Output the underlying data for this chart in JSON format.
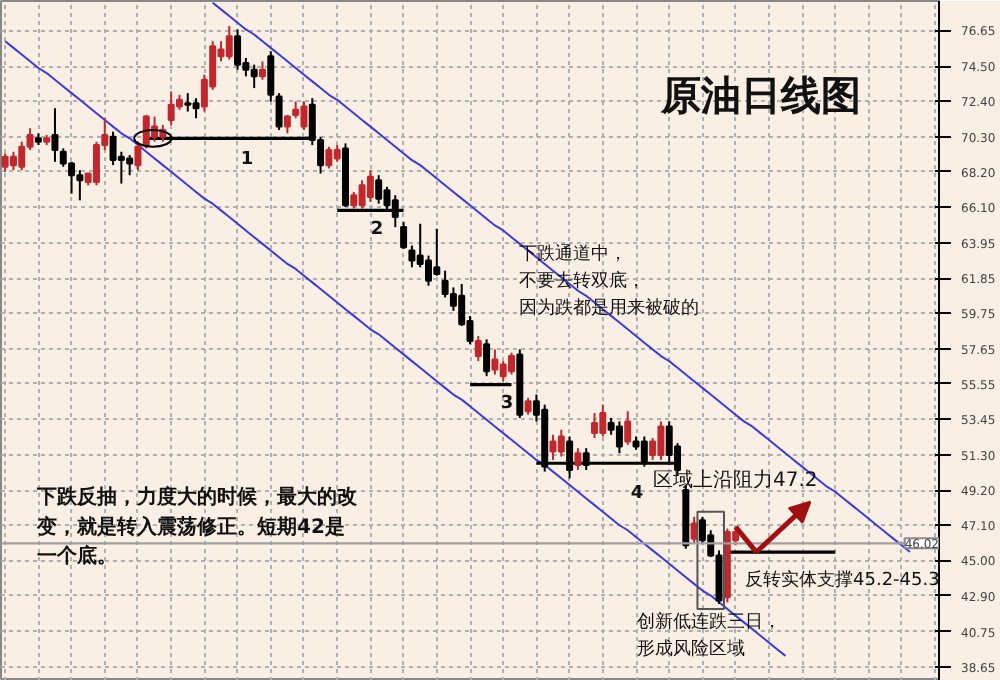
{
  "chart_data": {
    "type": "candlestick",
    "title": "原油日线图",
    "categories": [
      null,
      null,
      null,
      null,
      null,
      null,
      null,
      null,
      null,
      null,
      null,
      null,
      null,
      null,
      null,
      null,
      null,
      null,
      null,
      null,
      null,
      null,
      null,
      null,
      null,
      null,
      null,
      null,
      null,
      null,
      null,
      null,
      null,
      null,
      null,
      null,
      null,
      null,
      null,
      null,
      null,
      null,
      null,
      null,
      null,
      null,
      null,
      null,
      null,
      null,
      null,
      null,
      null,
      null,
      null,
      null,
      null,
      null,
      null,
      null,
      null,
      null,
      null,
      null,
      null,
      null,
      null,
      null,
      null,
      null,
      null,
      null,
      null,
      null,
      null,
      null,
      null,
      null,
      null,
      null,
      null,
      null,
      null,
      null,
      null,
      null,
      null,
      null,
      null,
      null,
      null,
      null,
      null,
      null,
      null,
      null,
      null,
      null,
      null,
      null,
      null,
      null,
      null,
      null,
      null,
      null,
      null,
      null,
      null,
      null,
      null,
      null,
      null
    ],
    "ohlc": [
      [
        68.5,
        69.3,
        68.2,
        69.1
      ],
      [
        68.6,
        69.4,
        68.3,
        69.1
      ],
      [
        68.5,
        70.0,
        68.3,
        69.7
      ],
      [
        69.7,
        70.8,
        69.5,
        70.4
      ],
      [
        70.2,
        70.5,
        69.8,
        70.0
      ],
      [
        70.0,
        70.4,
        69.8,
        70.2
      ],
      [
        70.4,
        72.0,
        68.8,
        69.5
      ],
      [
        69.4,
        69.6,
        68.5,
        68.7
      ],
      [
        68.7,
        68.8,
        66.9,
        68.0
      ],
      [
        68.0,
        68.3,
        66.5,
        67.7
      ],
      [
        67.6,
        68.1,
        67.4,
        68.1
      ],
      [
        67.6,
        70.0,
        67.4,
        69.8
      ],
      [
        69.8,
        71.4,
        69.5,
        70.4
      ],
      [
        70.3,
        70.6,
        68.6,
        68.9
      ],
      [
        69.1,
        69.4,
        67.5,
        68.9
      ],
      [
        69.0,
        69.2,
        68.0,
        68.7
      ],
      [
        68.6,
        70.0,
        68.3,
        69.7
      ],
      [
        69.8,
        71.6,
        69.6,
        71.5
      ],
      [
        70.3,
        71.5,
        70.0,
        70.9
      ],
      [
        70.3,
        71.0,
        70.0,
        70.7
      ],
      [
        71.3,
        73.0,
        71.0,
        72.2
      ],
      [
        72.1,
        72.8,
        71.9,
        72.5
      ],
      [
        72.3,
        72.9,
        71.8,
        72.2
      ],
      [
        72.3,
        72.6,
        71.4,
        72.0
      ],
      [
        72.1,
        74.0,
        71.8,
        73.7
      ],
      [
        73.3,
        76.0,
        73.1,
        75.7
      ],
      [
        75.1,
        76.0,
        74.8,
        75.5
      ],
      [
        75.1,
        76.9,
        74.9,
        76.3
      ],
      [
        76.3,
        76.7,
        74.3,
        74.6
      ],
      [
        74.7,
        75.0,
        73.9,
        74.3
      ],
      [
        74.3,
        74.6,
        73.2,
        73.9
      ],
      [
        73.9,
        74.8,
        73.7,
        74.3
      ],
      [
        75.1,
        75.4,
        72.4,
        72.8
      ],
      [
        72.7,
        72.9,
        70.7,
        70.9
      ],
      [
        70.9,
        71.6,
        70.5,
        71.5
      ],
      [
        71.6,
        72.4,
        71.4,
        71.9
      ],
      [
        70.9,
        72.4,
        70.7,
        72.1
      ],
      [
        72.2,
        72.6,
        69.8,
        70.1
      ],
      [
        70.1,
        70.3,
        68.1,
        68.6
      ],
      [
        68.6,
        69.7,
        68.4,
        69.5
      ],
      [
        69.0,
        69.8,
        68.8,
        69.5
      ],
      [
        69.6,
        69.9,
        66.1,
        66.2
      ],
      [
        66.2,
        67.0,
        66.0,
        66.8
      ],
      [
        66.2,
        67.7,
        66.0,
        67.4
      ],
      [
        66.7,
        68.3,
        66.4,
        67.9
      ],
      [
        67.7,
        68.0,
        66.3,
        66.6
      ],
      [
        67.1,
        67.3,
        65.9,
        66.2
      ],
      [
        66.5,
        66.8,
        64.9,
        65.5
      ],
      [
        64.9,
        65.2,
        63.6,
        63.7
      ],
      [
        63.5,
        63.8,
        62.5,
        62.9
      ],
      [
        63.2,
        65.1,
        62.5,
        62.7
      ],
      [
        62.9,
        63.2,
        61.4,
        61.7
      ],
      [
        62.5,
        64.8,
        62.0,
        62.1
      ],
      [
        61.7,
        62.3,
        60.7,
        60.9
      ],
      [
        60.9,
        61.3,
        59.9,
        60.2
      ],
      [
        60.8,
        61.5,
        59.0,
        59.1
      ],
      [
        59.3,
        59.6,
        57.9,
        58.1
      ],
      [
        57.2,
        58.4,
        56.9,
        58.1
      ],
      [
        57.9,
        58.2,
        56.0,
        56.3
      ],
      [
        56.4,
        57.6,
        56.1,
        57.0
      ],
      [
        56.0,
        56.9,
        55.7,
        56.7
      ],
      [
        56.3,
        57.4,
        56.1,
        57.2
      ],
      [
        57.3,
        57.6,
        53.5,
        53.7
      ],
      [
        53.9,
        54.7,
        53.7,
        54.5
      ],
      [
        54.5,
        54.9,
        53.3,
        53.7
      ],
      [
        54.0,
        54.3,
        50.3,
        50.6
      ],
      [
        51.5,
        52.5,
        51.0,
        52.1
      ],
      [
        51.5,
        52.8,
        51.2,
        52.4
      ],
      [
        52.1,
        52.4,
        49.9,
        50.4
      ],
      [
        50.7,
        51.7,
        50.4,
        51.4
      ],
      [
        51.4,
        51.7,
        50.4,
        50.7
      ],
      [
        52.6,
        53.8,
        52.3,
        53.2
      ],
      [
        52.6,
        54.3,
        52.4,
        53.8
      ],
      [
        53.2,
        53.5,
        52.5,
        52.8
      ],
      [
        53.0,
        53.3,
        51.4,
        51.8
      ],
      [
        52.1,
        53.9,
        51.9,
        53.3
      ],
      [
        52.1,
        52.4,
        51.6,
        51.8
      ],
      [
        52.1,
        52.4,
        50.6,
        50.9
      ],
      [
        51.3,
        52.3,
        51.0,
        52.1
      ],
      [
        51.3,
        53.3,
        51.0,
        53.0
      ],
      [
        53.0,
        53.3,
        50.7,
        51.3
      ],
      [
        51.8,
        52.0,
        50.1,
        50.4
      ],
      [
        49.2,
        49.5,
        45.7,
        45.9
      ],
      [
        46.3,
        47.6,
        46.0,
        47.2
      ],
      [
        47.4,
        47.6,
        46.0,
        46.2
      ],
      [
        46.5,
        46.8,
        45.2,
        45.3
      ],
      [
        45.3,
        45.6,
        42.4,
        42.6
      ],
      [
        42.8,
        46.9,
        42.5,
        46.7
      ],
      [
        46.2,
        47.0,
        45.9,
        46.7
      ],
      null,
      null,
      null,
      null,
      null,
      null,
      null,
      null,
      null,
      null,
      null,
      null,
      null,
      null,
      null,
      null,
      null,
      null,
      null,
      null,
      null,
      null,
      null,
      null
    ],
    "colors": [
      "#c0282d",
      "#c0282d",
      "#c0282d",
      "#c0282d",
      "#000000",
      "#c0282d",
      "#000000",
      "#000000",
      "#000000",
      "#000000",
      "#c0282d",
      "#c0282d",
      "#c0282d",
      "#000000",
      "#000000",
      "#000000",
      "#c0282d",
      "#c0282d",
      "#c0282d",
      "#c0282d",
      "#c0282d",
      "#c0282d",
      "#000000",
      "#000000",
      "#c0282d",
      "#c0282d",
      "#c0282d",
      "#c0282d",
      "#000000",
      "#000000",
      "#000000",
      "#c0282d",
      "#000000",
      "#000000",
      "#c0282d",
      "#c0282d",
      "#c0282d",
      "#000000",
      "#000000",
      "#c0282d",
      "#c0282d",
      "#000000",
      "#c0282d",
      "#c0282d",
      "#c0282d",
      "#000000",
      "#000000",
      "#000000",
      "#000000",
      "#000000",
      "#000000",
      "#000000",
      "#000000",
      "#000000",
      "#000000",
      "#000000",
      "#000000",
      "#c0282d",
      "#000000",
      "#c0282d",
      "#c0282d",
      "#c0282d",
      "#000000",
      "#c0282d",
      "#000000",
      "#000000",
      "#c0282d",
      "#c0282d",
      "#000000",
      "#c0282d",
      "#000000",
      "#c0282d",
      "#c0282d",
      "#000000",
      "#000000",
      "#c0282d",
      "#000000",
      "#000000",
      "#c0282d",
      "#c0282d",
      "#000000",
      "#000000",
      "#000000",
      "#c0282d",
      "#000000",
      "#000000",
      "#000000",
      "#c0282d",
      "#c0282d",
      null,
      null,
      null,
      null,
      null,
      null,
      null,
      null,
      null,
      null,
      null,
      null,
      null,
      null,
      null,
      null,
      null,
      null,
      null,
      null,
      null,
      null,
      null,
      null
    ],
    "series": [
      {
        "type": "line",
        "color": "#3b3bdc",
        "values": [
          null,
          null,
          null,
          null,
          null,
          null,
          null,
          null,
          null,
          null,
          null,
          null,
          null,
          null,
          null,
          null,
          null,
          null,
          null,
          null,
          null,
          null,
          null,
          null,
          null,
          78.3,
          77.9,
          77.5,
          77.1,
          76.7,
          76.4,
          76.0,
          75.6,
          75.2,
          74.8,
          74.4,
          74.0,
          73.6,
          73.2,
          72.8,
          72.5,
          72.1,
          71.7,
          71.3,
          70.9,
          70.5,
          70.1,
          69.7,
          69.3,
          68.9,
          68.6,
          68.2,
          67.8,
          67.4,
          67.0,
          66.6,
          66.2,
          65.8,
          65.4,
          65.0,
          64.7,
          64.3,
          63.9,
          63.5,
          63.1,
          62.7,
          62.3,
          61.9,
          61.5,
          61.1,
          60.8,
          60.4,
          60.0,
          59.6,
          59.2,
          58.8,
          58.4,
          58.0,
          57.6,
          57.2,
          56.9,
          56.5,
          56.1,
          55.7,
          55.3,
          54.9,
          54.5,
          54.1,
          53.7,
          53.3,
          53.0,
          52.6,
          52.2,
          51.8,
          51.4,
          51.0,
          50.6,
          50.2,
          49.8,
          49.4,
          49.1,
          48.7,
          48.3,
          47.9,
          47.5,
          47.1,
          46.7,
          46.3,
          45.9,
          45.5,
          null,
          null,
          null
        ]
      },
      {
        "type": "line",
        "color": "#3b3bdc",
        "values": [
          76.0,
          75.6,
          75.2,
          74.8,
          74.4,
          74.1,
          73.7,
          73.3,
          72.9,
          72.5,
          72.1,
          71.7,
          71.3,
          70.9,
          70.5,
          70.2,
          69.8,
          69.4,
          69.0,
          68.6,
          68.2,
          67.8,
          67.4,
          67.0,
          66.6,
          66.3,
          65.9,
          65.5,
          65.1,
          64.7,
          64.3,
          63.9,
          63.5,
          63.1,
          62.7,
          62.4,
          62.0,
          61.6,
          61.2,
          60.8,
          60.4,
          60.0,
          59.6,
          59.2,
          58.8,
          58.5,
          58.1,
          57.7,
          57.3,
          56.9,
          56.5,
          56.1,
          55.7,
          55.3,
          54.9,
          54.6,
          54.2,
          53.8,
          53.4,
          53.0,
          52.6,
          52.2,
          51.8,
          51.4,
          51.0,
          50.7,
          50.3,
          49.9,
          49.5,
          49.1,
          48.7,
          48.3,
          47.9,
          47.5,
          47.1,
          46.8,
          46.4,
          46.0,
          45.6,
          45.2,
          44.8,
          44.4,
          44.0,
          43.6,
          43.2,
          42.9,
          42.5,
          42.1,
          41.7,
          41.3,
          40.9,
          40.5,
          40.1,
          39.7,
          39.3,
          null,
          null,
          null,
          null,
          null,
          null,
          null,
          null,
          null,
          null,
          null,
          null,
          null,
          null,
          null,
          null,
          null,
          null
        ]
      },
      {
        "type": "line",
        "color": "#000000",
        "values": [
          null,
          null,
          null,
          null,
          null,
          null,
          null,
          null,
          null,
          null,
          null,
          null,
          null,
          null,
          null,
          null,
          null,
          70.2,
          70.2,
          70.2,
          70.2,
          70.2,
          70.2,
          70.2,
          70.2,
          70.2,
          70.2,
          70.2,
          70.2,
          70.2,
          70.2,
          70.2,
          70.2,
          70.2,
          70.2,
          70.2,
          70.2,
          70.2,
          null,
          null,
          null,
          null,
          null,
          null,
          null,
          null,
          null,
          null,
          null,
          null,
          null,
          null,
          null,
          null,
          null,
          null,
          null,
          null,
          null,
          null,
          null,
          null,
          null,
          null,
          null,
          null,
          null,
          null,
          null,
          null,
          null,
          null,
          null,
          null,
          null,
          null,
          null,
          null,
          null,
          null,
          null,
          null,
          null,
          null,
          null,
          null,
          null,
          null,
          null,
          null,
          null,
          null,
          null,
          null,
          null,
          null,
          null,
          null,
          null,
          null,
          null,
          null,
          null,
          null,
          null,
          null,
          null,
          null,
          null,
          null,
          null,
          null,
          null
        ]
      },
      {
        "type": "line",
        "color": "#000000",
        "values": [
          null,
          null,
          null,
          null,
          null,
          null,
          null,
          null,
          null,
          null,
          null,
          null,
          null,
          null,
          null,
          null,
          null,
          null,
          null,
          null,
          null,
          null,
          null,
          null,
          null,
          null,
          null,
          null,
          null,
          null,
          null,
          null,
          null,
          null,
          null,
          null,
          null,
          null,
          null,
          null,
          65.9,
          65.9,
          65.9,
          65.9,
          65.9,
          65.9,
          65.9,
          65.9,
          65.9,
          null,
          null,
          null,
          null,
          null,
          null,
          null,
          null,
          null,
          null,
          null,
          null,
          null,
          null,
          null,
          null,
          null,
          null,
          null,
          null,
          null,
          null,
          null,
          null,
          null,
          null,
          null,
          null,
          null,
          null,
          null,
          null,
          null,
          null,
          null,
          null,
          null,
          null,
          null,
          null,
          null,
          null,
          null,
          null,
          null,
          null,
          null,
          null,
          null,
          null,
          null,
          null,
          null,
          null,
          null,
          null,
          null,
          null,
          null,
          null,
          null,
          null,
          null,
          null
        ]
      },
      {
        "type": "line",
        "color": "#000000",
        "values": [
          null,
          null,
          null,
          null,
          null,
          null,
          null,
          null,
          null,
          null,
          null,
          null,
          null,
          null,
          null,
          null,
          null,
          null,
          null,
          null,
          null,
          null,
          null,
          null,
          null,
          null,
          null,
          null,
          null,
          null,
          null,
          null,
          null,
          null,
          null,
          null,
          null,
          null,
          null,
          null,
          null,
          null,
          null,
          null,
          null,
          null,
          null,
          null,
          null,
          null,
          null,
          null,
          null,
          null,
          null,
          null,
          55.5,
          55.5,
          55.5,
          55.5,
          55.5,
          55.5,
          null,
          null,
          null,
          null,
          null,
          null,
          null,
          null,
          null,
          null,
          null,
          null,
          null,
          null,
          null,
          null,
          null,
          null,
          null,
          null,
          null,
          null,
          null,
          null,
          null,
          null,
          null,
          null,
          null,
          null,
          null,
          null,
          null,
          null,
          null,
          null,
          null,
          null,
          null,
          null,
          null,
          null,
          null,
          null,
          null,
          null,
          null,
          null,
          null,
          null,
          null
        ]
      },
      {
        "type": "line",
        "color": "#000000",
        "values": [
          null,
          null,
          null,
          null,
          null,
          null,
          null,
          null,
          null,
          null,
          null,
          null,
          null,
          null,
          null,
          null,
          null,
          null,
          null,
          null,
          null,
          null,
          null,
          null,
          null,
          null,
          null,
          null,
          null,
          null,
          null,
          null,
          null,
          null,
          null,
          null,
          null,
          null,
          null,
          null,
          null,
          null,
          null,
          null,
          null,
          null,
          null,
          null,
          null,
          null,
          null,
          null,
          null,
          null,
          null,
          null,
          null,
          null,
          null,
          null,
          null,
          null,
          null,
          null,
          50.8,
          50.8,
          50.8,
          50.8,
          50.8,
          50.8,
          50.8,
          50.8,
          50.8,
          50.8,
          50.8,
          50.8,
          50.8,
          50.8,
          50.8,
          50.8,
          50.8,
          50.8,
          null,
          null,
          null,
          null,
          null,
          null,
          null,
          null,
          null,
          null,
          null,
          null,
          null,
          null,
          null,
          null,
          null,
          null,
          null,
          null,
          null,
          null,
          null,
          null,
          null,
          null,
          null,
          null,
          null,
          null,
          null
        ]
      },
      {
        "type": "line",
        "color": "#000000",
        "values": [
          null,
          null,
          null,
          null,
          null,
          null,
          null,
          null,
          null,
          null,
          null,
          null,
          null,
          null,
          null,
          null,
          null,
          null,
          null,
          null,
          null,
          null,
          null,
          null,
          null,
          null,
          null,
          null,
          null,
          null,
          null,
          null,
          null,
          null,
          null,
          null,
          null,
          null,
          null,
          null,
          null,
          null,
          null,
          null,
          null,
          null,
          null,
          null,
          null,
          null,
          null,
          null,
          null,
          null,
          null,
          null,
          null,
          null,
          null,
          null,
          null,
          null,
          null,
          null,
          null,
          null,
          null,
          null,
          null,
          null,
          null,
          null,
          null,
          null,
          null,
          null,
          null,
          null,
          null,
          null,
          null,
          null,
          null,
          null,
          null,
          null,
          null,
          45.5,
          45.5,
          45.5,
          45.5,
          45.5,
          45.5,
          45.5,
          45.5,
          45.5,
          45.5,
          45.5,
          45.5,
          45.5,
          45.5,
          null,
          null,
          null,
          null,
          null,
          null,
          null,
          null,
          null,
          null,
          null,
          null
        ]
      }
    ],
    "ref_lines": [
      {
        "axis": "y",
        "value": 46.02,
        "label": "46.02",
        "color": "#a0a0a0"
      }
    ],
    "annotations": [
      "下跌通道中，不要去转双底，因为跌都是用来被破的",
      "下跌反抽，力度大的时候，最大的改变，就是转入震荡修正。短期42是一个底。",
      "1",
      "2",
      "3",
      "4",
      "区域上沿阻力47.2",
      "反转实体支撑45.2-45.3",
      "创新低连跌三日，形成风险区域"
    ],
    "ylim": [
      37.8,
      78.4
    ],
    "yticks": [
      76.65,
      {
        "value": 74.5,
        "label": "74.50"
      },
      {
        "value": 72.4,
        "label": "72.40"
      },
      {
        "value": 70.3,
        "label": "70.30"
      },
      {
        "value": 68.2,
        "label": "68.20"
      },
      {
        "value": 66.1,
        "label": "66.10"
      },
      63.95,
      61.85,
      59.75,
      57.65,
      55.55,
      53.45,
      {
        "value": 51.3,
        "label": "51.30"
      },
      {
        "value": 49.2,
        "label": "49.20"
      },
      {
        "value": 47.1,
        "label": "47.10"
      },
      {
        "value": 45.0,
        "label": "45.00"
      },
      {
        "value": 42.9,
        "label": "42.90"
      },
      40.75,
      38.65
    ],
    "grid": true,
    "tick_labels": "y"
  }
}
